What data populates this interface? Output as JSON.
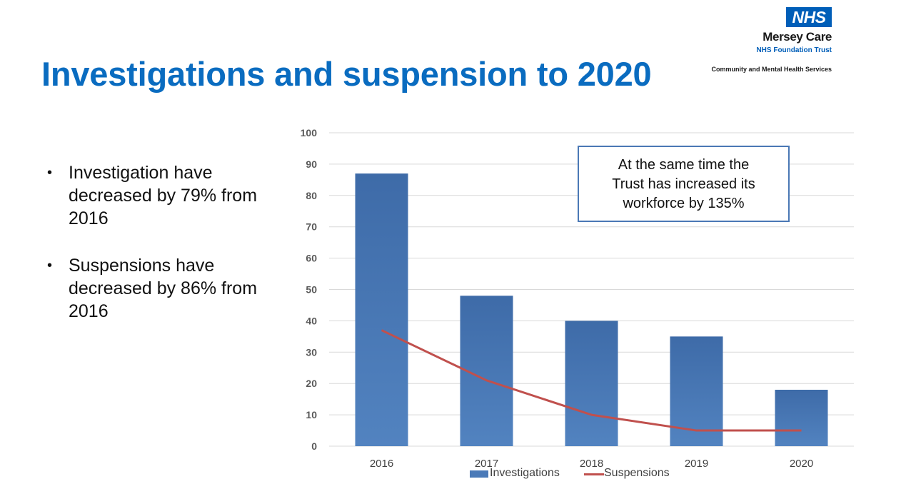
{
  "slide": {
    "title": "Investigations and suspension to 2020",
    "bullets": [
      "Investigation have decreased by 79% from 2016",
      "Suspensions have decreased by 86% from 2016"
    ],
    "callout_lines": [
      "At the same time the",
      "Trust has increased its",
      "workforce by 135%"
    ]
  },
  "logo": {
    "nhs": "NHS",
    "org": "Mersey Care",
    "sub": "NHS Foundation Trust",
    "tagline": "Community and Mental Health Services",
    "color": "#005eb8"
  },
  "colors": {
    "title": "#0a6cc0",
    "bars": "#4a7ab8",
    "line": "#c0504d"
  },
  "chart_data": {
    "type": "bar",
    "categories": [
      "2016",
      "2017",
      "2018",
      "2019",
      "2020"
    ],
    "series": [
      {
        "name": "Investigations",
        "type": "bar",
        "values": [
          87,
          48,
          40,
          35,
          18
        ],
        "color": "#4a7ab8"
      },
      {
        "name": "Suspensions",
        "type": "line",
        "values": [
          37,
          21,
          10,
          5,
          5
        ],
        "color": "#c0504d"
      }
    ],
    "ylim": [
      0,
      100
    ],
    "yticks": [
      0,
      10,
      20,
      30,
      40,
      50,
      60,
      70,
      80,
      90,
      100
    ],
    "grid": true,
    "legend": "bottom"
  }
}
